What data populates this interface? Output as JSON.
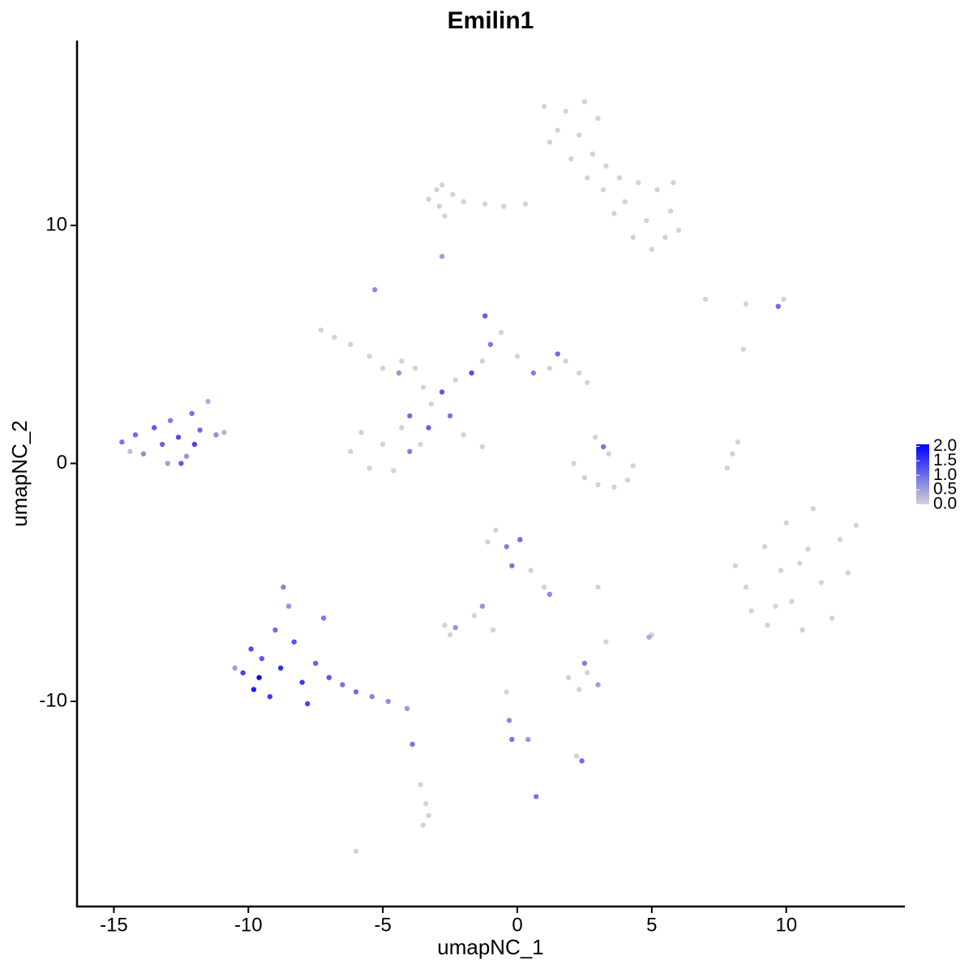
{
  "chart_data": {
    "type": "scatter",
    "title": "Emilin1",
    "x_label": "umapNC_1",
    "y_label": "umapNC_2",
    "xlim": [
      -16.37,
      14.38
    ],
    "ylim": [
      -18.62,
      17.77
    ],
    "xticks": [
      -15,
      -10,
      -5,
      0,
      5,
      10
    ],
    "yticks": [
      -10,
      0,
      10
    ],
    "color_low": "#d3d3d3",
    "color_high": "#0000ff",
    "color_lim": [
      0,
      2.07
    ],
    "color_ticks": [
      {
        "value": 0,
        "label": "0.0"
      },
      0.5,
      {
        "value": 1,
        "label": "1.0"
      },
      1.5,
      {
        "value": 2,
        "label": "2.0"
      }
    ],
    "x": [
      1.0,
      1.8,
      2.5,
      1.5,
      2.3,
      3.0,
      2.0,
      2.8,
      3.3,
      3.8,
      4.5,
      5.2,
      5.8,
      4.0,
      3.6,
      4.8,
      5.5,
      6.0,
      5.0,
      3.2,
      1.2,
      2.6,
      4.3,
      5.7,
      -3.3,
      -2.8,
      -2.4,
      -2.9,
      -2.0,
      -1.2,
      -0.5,
      0.3,
      -2.7,
      -3.0,
      -7.3,
      -6.8,
      -6.2,
      -5.5,
      -5.0,
      -4.3,
      -3.8,
      -3.5,
      -3.2,
      -4.0,
      -4.3,
      -5.0,
      -5.8,
      -6.2,
      -5.5,
      -4.6,
      -4.0,
      -3.6,
      -2.8,
      -2.3,
      -1.7,
      -1.3,
      -1.0,
      -1.2,
      -0.6,
      0,
      0.6,
      1.2,
      1.8,
      2.3,
      2.6,
      1.5,
      -2.5,
      -2.0,
      -1.3,
      -5.3,
      -4.4,
      -3.3,
      -14.7,
      -14.2,
      -13.9,
      -13.5,
      -13.2,
      -12.9,
      -12.6,
      -12.3,
      -12.1,
      -11.8,
      -11.5,
      -11.2,
      -10.9,
      -13.0,
      -12.5,
      -14.4,
      -12.0,
      -10.2,
      -9.8,
      -9.5,
      -9.2,
      -9.0,
      -8.8,
      -8.5,
      -8.3,
      -8.0,
      -7.8,
      -7.5,
      -7.2,
      -7.0,
      -6.5,
      -6.0,
      -5.4,
      -4.8,
      -4.1,
      -9.6,
      -8.7,
      -10.5,
      -9.9,
      -3.9,
      8.1,
      8.5,
      8.7,
      9.2,
      9.3,
      9.8,
      10.0,
      10.2,
      10.6,
      10.8,
      11.0,
      11.3,
      11.7,
      12.0,
      12.3,
      12.6,
      10.5,
      9.6,
      2.1,
      2.5,
      3.0,
      3.6,
      4.1,
      4.3,
      2.9,
      3.2,
      3.4,
      7.8,
      8.0,
      8.2,
      -1.1,
      -0.8,
      -0.4,
      0.1,
      -0.2,
      0.5,
      1.0,
      1.2,
      -1.3,
      -1.6,
      -2.7,
      -2.3,
      -2.5,
      -0.9,
      1.9,
      2.3,
      2.6,
      3.0,
      2.5,
      -0.4,
      -0.3,
      -0.2,
      0.4,
      2.4,
      2.2,
      -3.6,
      -3.4,
      -3.5,
      -3.3,
      0.7,
      -6.0,
      5.0,
      4.9,
      3.3,
      -2.8,
      7.0,
      8.4,
      9.7,
      9.9,
      8.5,
      3.0
    ],
    "values": [
      15.0,
      14.8,
      15.2,
      14.0,
      13.8,
      14.5,
      12.8,
      13.0,
      12.5,
      12.0,
      11.8,
      11.5,
      11.8,
      11.0,
      10.5,
      10.2,
      9.5,
      9.8,
      9.0,
      11.5,
      13.5,
      12.0,
      9.5,
      10.6,
      11.1,
      11.7,
      11.3,
      10.8,
      11.0,
      10.9,
      10.8,
      10.9,
      10.4,
      11.5,
      5.6,
      5.3,
      5.0,
      4.5,
      4.0,
      4.3,
      4.0,
      3.2,
      2.5,
      2.0,
      1.5,
      0.8,
      1.3,
      0.5,
      -0.2,
      -0.3,
      0.5,
      0.8,
      3.0,
      3.5,
      3.8,
      4.3,
      5.0,
      6.2,
      5.5,
      4.5,
      3.8,
      4.0,
      4.3,
      3.8,
      3.4,
      4.6,
      2.0,
      1.2,
      0.7,
      7.3,
      3.8,
      1.5,
      0.9,
      1.2,
      0.4,
      1.5,
      0.8,
      1.8,
      1.1,
      0.3,
      2.1,
      1.4,
      2.6,
      1.2,
      1.3,
      0.0,
      0.0,
      0.5,
      0.8,
      -8.8,
      -9.5,
      -8.2,
      -9.8,
      -7.0,
      -8.6,
      -6.0,
      -7.5,
      -9.2,
      -10.1,
      -8.4,
      -6.5,
      -9.0,
      -9.3,
      -9.6,
      -9.8,
      -10.0,
      -10.3,
      -9.0,
      -5.2,
      -8.6,
      -7.8,
      -11.8,
      -4.3,
      -5.2,
      -6.2,
      -3.5,
      -6.8,
      -4.5,
      -2.5,
      -5.8,
      -7.0,
      -3.6,
      -1.9,
      -5.0,
      -6.5,
      -3.2,
      -4.6,
      -2.6,
      -4.2,
      -6.0,
      0.0,
      -0.6,
      -0.9,
      -1.0,
      -0.7,
      -0.1,
      1.1,
      0.7,
      0.4,
      -0.2,
      0.4,
      0.9,
      -3.3,
      -2.8,
      -3.5,
      -3.2,
      -4.3,
      -4.5,
      -5.2,
      -5.5,
      -6.0,
      -6.4,
      -6.8,
      -6.9,
      -7.2,
      -7.0,
      -9.0,
      -9.5,
      -8.8,
      -9.3,
      -8.4,
      -9.6,
      -10.8,
      -11.6,
      -11.6,
      -12.5,
      -12.3,
      -13.5,
      -14.3,
      -15.2,
      -14.8,
      -14.0,
      -16.3,
      -7.2,
      -7.3,
      -7.5,
      8.7,
      6.9,
      4.8,
      6.6,
      6.9,
      6.7,
      -5.2
    ],
    "expression": [
      0,
      0,
      0,
      0,
      0,
      0,
      0,
      0,
      0,
      0,
      0,
      0,
      0,
      0,
      0,
      0,
      0,
      0,
      0,
      0,
      0,
      0,
      0,
      0,
      0,
      0,
      0,
      0,
      0,
      0,
      0,
      0,
      0,
      0,
      0,
      0,
      0,
      0,
      0,
      0,
      0,
      0,
      0,
      1.0,
      0,
      0,
      0,
      0,
      0,
      0,
      0.8,
      0,
      1.2,
      0,
      1.3,
      0,
      0.9,
      1.1,
      0,
      0,
      0.8,
      0,
      0,
      0,
      0,
      1.0,
      0.9,
      0,
      0,
      0.7,
      0.6,
      1.1,
      0.9,
      1.0,
      0.7,
      1.2,
      1.1,
      0.8,
      1.3,
      0.6,
      0.9,
      1.0,
      0.4,
      0.7,
      0.3,
      0.5,
      1.2,
      0.2,
      1.4,
      1.4,
      1.8,
      1.2,
      1.5,
      1.0,
      1.6,
      0.6,
      1.3,
      1.5,
      1.4,
      1.1,
      0.9,
      1.2,
      0.9,
      1.0,
      0.8,
      0.7,
      0.6,
      2.0,
      0.8,
      0.5,
      1.3,
      0.9,
      0,
      0,
      0,
      0,
      0,
      0,
      0,
      0,
      0,
      0,
      0,
      0,
      0,
      0,
      0,
      0,
      0,
      0,
      0,
      0,
      0,
      0,
      0,
      0,
      0,
      0.9,
      0,
      0,
      0,
      0,
      0,
      0,
      0.8,
      1.0,
      0.9,
      0,
      0,
      0.7,
      0.6,
      0,
      0,
      0.6,
      0,
      0,
      0,
      0,
      0,
      0.5,
      0.8,
      0,
      0.7,
      0.9,
      0.6,
      1.0,
      0,
      0,
      0,
      0,
      0,
      0.9,
      0,
      0,
      0.4,
      0,
      0.5,
      0,
      0,
      1.0,
      0,
      0,
      0
    ]
  }
}
